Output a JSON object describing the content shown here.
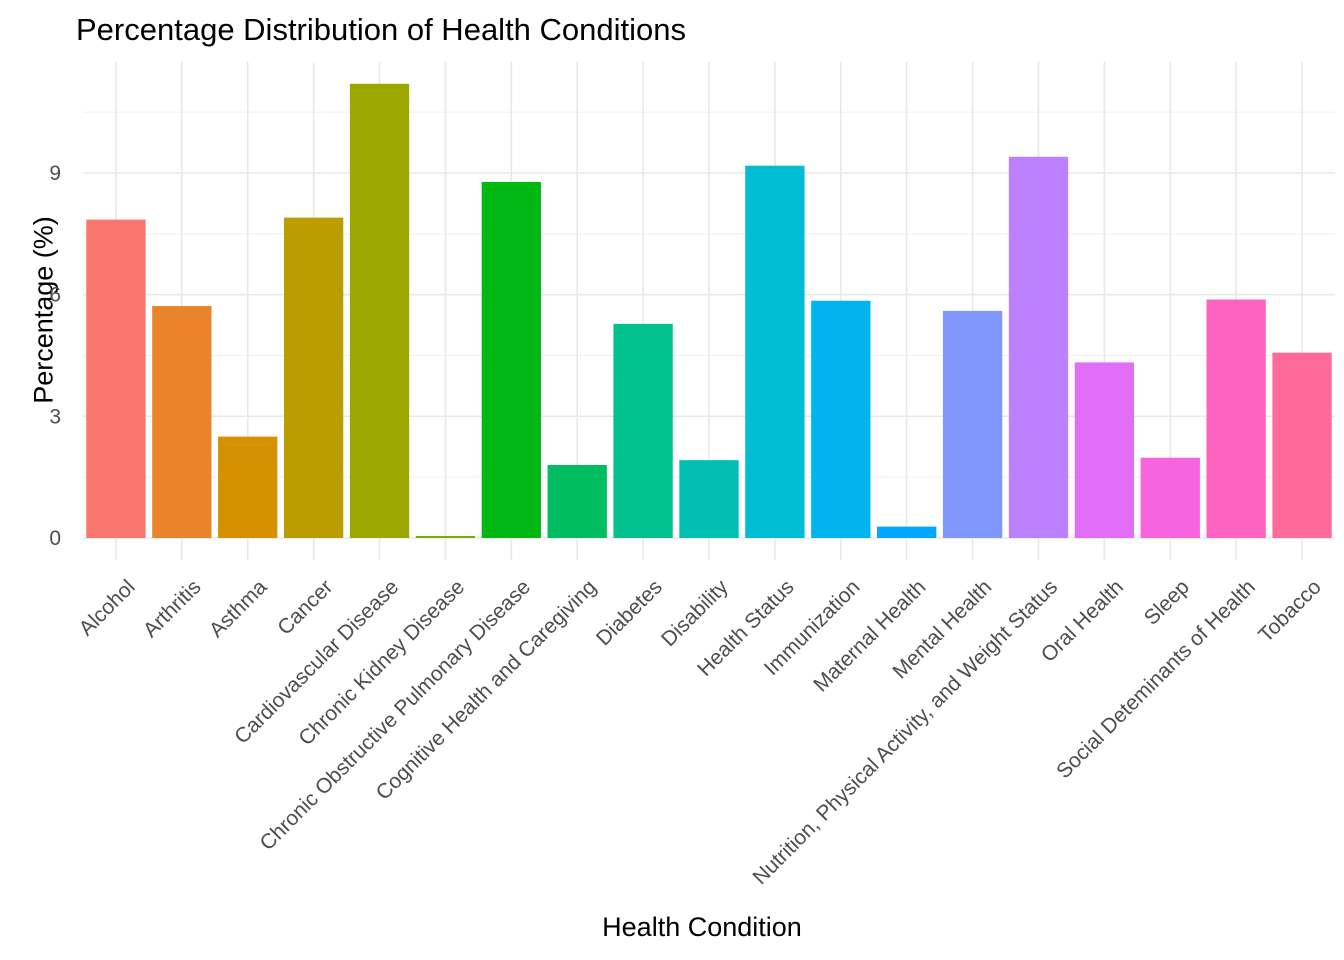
{
  "chart_data": {
    "type": "bar",
    "title": "Percentage Distribution of Health Conditions",
    "xlabel": "Health Condition",
    "ylabel": "Percentage (%)",
    "ylim": [
      0,
      11.5
    ],
    "yticks": [
      0,
      3,
      6,
      9
    ],
    "grid": true,
    "legend": "none",
    "categories": [
      "Alcohol",
      "Arthritis",
      "Asthma",
      "Cancer",
      "Cardiovascular Disease",
      "Chronic Kidney Disease",
      "Chronic Obstructive Pulmonary Disease",
      "Cognitive Health and Caregiving",
      "Diabetes",
      "Disability",
      "Health Status",
      "Immunization",
      "Maternal Health",
      "Mental Health",
      "Nutrition, Physical Activity, and Weight Status",
      "Oral Health",
      "Sleep",
      "Social Deteminants of Health",
      "Tobacco"
    ],
    "values": [
      7.85,
      5.72,
      2.5,
      7.9,
      11.2,
      0.05,
      8.78,
      1.8,
      5.28,
      1.92,
      9.18,
      5.85,
      0.28,
      5.6,
      9.4,
      4.33,
      1.98,
      5.88,
      4.57
    ],
    "colors": [
      "#F8766D",
      "#E9842C",
      "#D69100",
      "#BC9D00",
      "#9CA700",
      "#6FB000",
      "#00B813",
      "#00BD61",
      "#00C08E",
      "#00C0B4",
      "#00BDD4",
      "#00B5EE",
      "#00A7FF",
      "#7F96FF",
      "#BC81FF",
      "#E26EF7",
      "#F863DF",
      "#FF62BF",
      "#FF6A9A"
    ]
  }
}
